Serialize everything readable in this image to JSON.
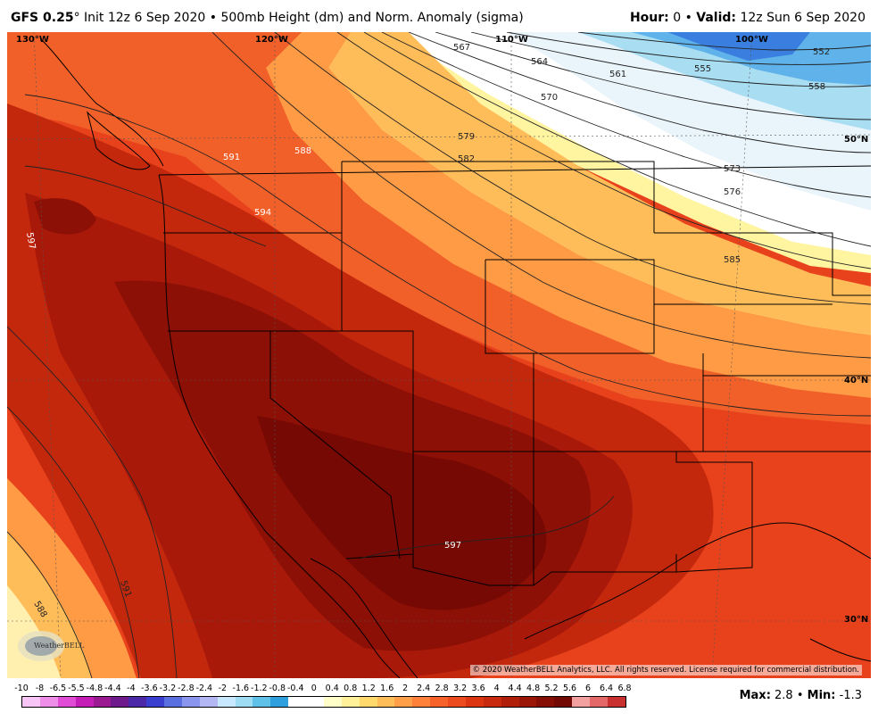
{
  "header": {
    "model": "GFS 0.25",
    "degree_symbol": "°",
    "description": " Init 12z 6 Sep 2020 • 500mb Height (dm) and Norm. Anomaly (sigma)",
    "hour_label": "Hour:",
    "hour_value": " 0 • ",
    "valid_label": "Valid:",
    "valid_value": " 12z Sun 6 Sep 2020"
  },
  "map": {
    "longitude_labels": [
      "130°W",
      "120°W",
      "110°W",
      "100°W"
    ],
    "latitude_labels": [
      "50°N",
      "40°N",
      "30°N"
    ],
    "contour_labels": [
      "567",
      "564",
      "561",
      "555",
      "552",
      "558",
      "570",
      "579",
      "582",
      "573",
      "576",
      "585",
      "588",
      "591",
      "594",
      "597",
      "597",
      "591",
      "588"
    ],
    "logo_text": "WeatherBELL",
    "copyright": "© 2020 WeatherBELL Analytics, LLC. All rights reserved. License required for commercial distribution."
  },
  "legend": {
    "ticks": [
      "-10",
      "-8",
      "-6.5",
      "-5.5",
      "-4.8",
      "-4.4",
      "-4",
      "-3.6",
      "-3.2",
      "-2.8",
      "-2.4",
      "-2",
      "-1.6",
      "-1.2",
      "-0.8",
      "-0.4",
      "0",
      "0.4",
      "0.8",
      "1.2",
      "1.6",
      "2",
      "2.4",
      "2.8",
      "3.2",
      "3.6",
      "4",
      "4.4",
      "4.8",
      "5.2",
      "5.6",
      "6",
      "6.4",
      "6.8"
    ],
    "colors": [
      "#f7c6f7",
      "#ee8ee8",
      "#e04cd6",
      "#c41eb6",
      "#9b1a92",
      "#6e1a8c",
      "#4b28a8",
      "#3b3fd0",
      "#5a6fe0",
      "#8a96ee",
      "#b3b8f5",
      "#c8e8ff",
      "#9ddcf2",
      "#5fc0e8",
      "#2fa0dd",
      "#ffffff",
      "#ffffff",
      "#fffdc8",
      "#fff19a",
      "#ffd96b",
      "#ffbd5a",
      "#ff9f4a",
      "#ff813a",
      "#f7622b",
      "#ec4a1f",
      "#dc3512",
      "#c72a0e",
      "#b01f0a",
      "#9b1607",
      "#850f05",
      "#720a03",
      "#f3a0a0",
      "#e56868",
      "#c93030"
    ],
    "max_label": "Max:",
    "max_value": " 2.8 • ",
    "min_label": "Min:",
    "min_value": " -1.3"
  }
}
